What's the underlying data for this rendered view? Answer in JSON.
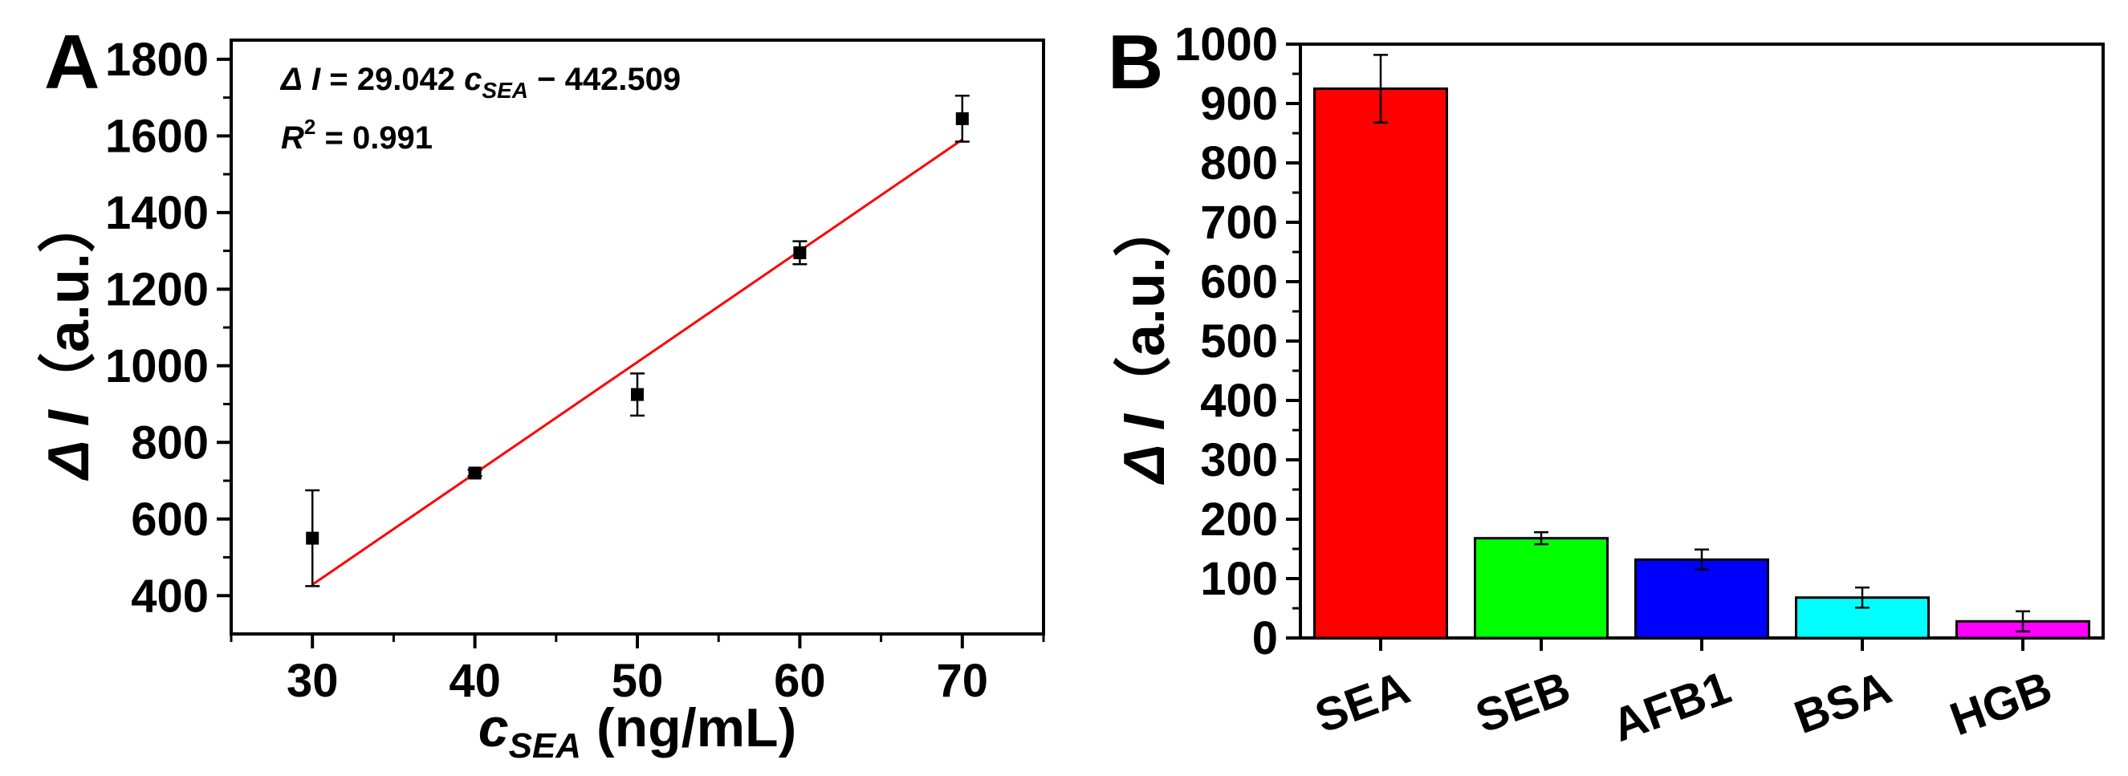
{
  "chart_data": [
    {
      "panel": "A",
      "type": "scatter",
      "xlabel_var": "c",
      "xlabel_sub": "SEA",
      "xlabel_unit": " (ng/mL)",
      "ylabel_delta": "Δ",
      "ylabel_var": "I",
      "ylabel_unit": "（a.u.）",
      "x": [
        30,
        40,
        50,
        60,
        70
      ],
      "y": [
        550,
        720,
        925,
        1295,
        1645
      ],
      "err": [
        125,
        8,
        55,
        30,
        60
      ],
      "xlim": [
        25,
        75
      ],
      "ylim": [
        300,
        1850
      ],
      "xticks": [
        30,
        40,
        50,
        60,
        70
      ],
      "yticks": [
        400,
        600,
        800,
        1000,
        1200,
        1400,
        1600,
        1800
      ],
      "fit": {
        "slope": 29.042,
        "intercept": -442.509,
        "x_range": [
          30,
          70
        ],
        "color": "#ff0000"
      },
      "equation": {
        "lhs_delta": "Δ",
        "lhs_var": "I",
        "mid": " = 29.042 ",
        "var": "c",
        "sub": "SEA",
        "rest": " − 442.509"
      },
      "r2": {
        "var": "R",
        "sup": "2",
        "rest": " = 0.991"
      }
    },
    {
      "panel": "B",
      "type": "bar",
      "ylabel_delta": "Δ",
      "ylabel_var": "I",
      "ylabel_unit": "（a.u.）",
      "categories": [
        "SEA",
        "SEB",
        "AFB1",
        "BSA",
        "HGB"
      ],
      "values": [
        925,
        168,
        132,
        68,
        28
      ],
      "errors": [
        57,
        10,
        17,
        17,
        17
      ],
      "colors": [
        "#ff0000",
        "#00ff00",
        "#0000ff",
        "#00ffff",
        "#ff00ff"
      ],
      "ylim": [
        0,
        1000
      ],
      "yticks": [
        0,
        100,
        200,
        300,
        400,
        500,
        600,
        700,
        800,
        900,
        1000
      ]
    }
  ]
}
